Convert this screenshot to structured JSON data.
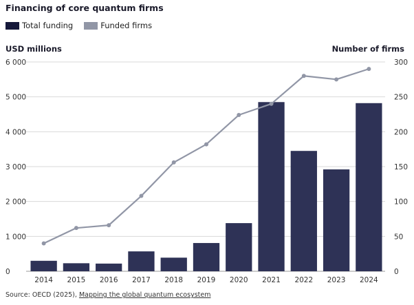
{
  "chart_data": {
    "type": "bar",
    "title": "Financing of core quantum firms",
    "categories": [
      "2014",
      "2015",
      "2016",
      "2017",
      "2018",
      "2019",
      "2020",
      "2021",
      "2022",
      "2023",
      "2024"
    ],
    "series": [
      {
        "name": "Total funding",
        "type": "bar",
        "axis": "left",
        "color": "#2e3256",
        "values": [
          300,
          230,
          220,
          570,
          390,
          810,
          1380,
          4850,
          3450,
          2920,
          4820
        ]
      },
      {
        "name": "Funded firms",
        "type": "line",
        "axis": "right",
        "color": "#9196a6",
        "values": [
          40,
          62,
          66,
          108,
          156,
          182,
          224,
          240,
          280,
          275,
          290
        ]
      }
    ],
    "ylabel": "USD millions",
    "y2label": "Number of firms",
    "ylim": [
      0,
      6000
    ],
    "y2lim": [
      0,
      300
    ],
    "yticks": [
      "0",
      "1 000",
      "2 000",
      "3 000",
      "4 000",
      "5 000",
      "6 000"
    ],
    "y2ticks": [
      "0",
      "50",
      "100",
      "150",
      "200",
      "250",
      "300"
    ],
    "grid": true,
    "legend_position": "top-left"
  },
  "source": {
    "prefix": "Source: OECD (2025), ",
    "link_text": "Mapping the global quantum ecosystem"
  }
}
